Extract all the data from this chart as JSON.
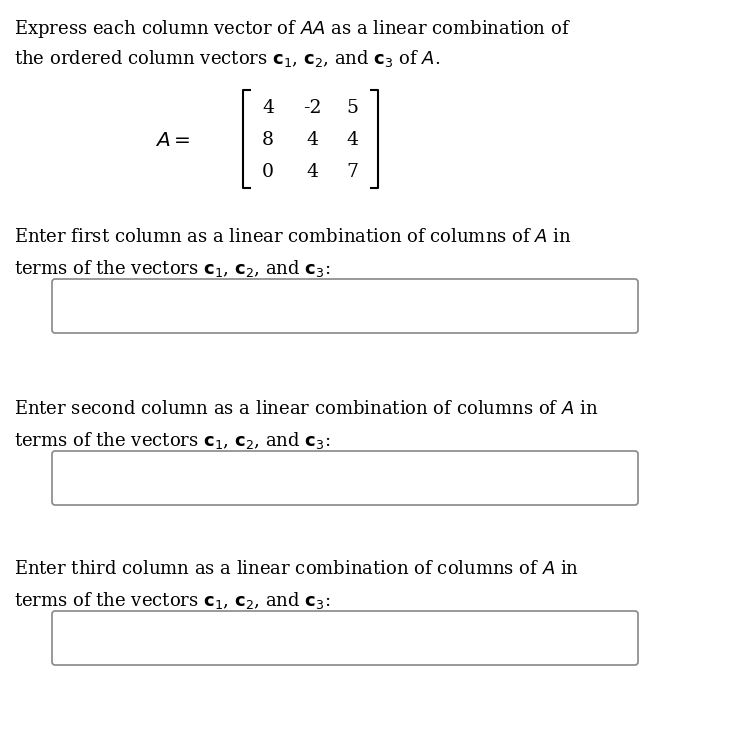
{
  "background_color": "#ffffff",
  "title_line1": "Express each column vector of $AA$ as a linear combination of",
  "title_line2": "the ordered column vectors $\\mathbf{c}_1$, $\\mathbf{c}_2$, and $\\mathbf{c}_3$ of $A$.",
  "matrix_label": "$A = $",
  "matrix_entries": [
    [
      "4",
      "-2",
      "5"
    ],
    [
      "8",
      "4",
      "4"
    ],
    [
      "0",
      "4",
      "7"
    ]
  ],
  "prompt1_line1": "Enter first column as a linear combination of columns of $A$ in",
  "prompt1_line2": "terms of the vectors $\\mathbf{c}_1$, $\\mathbf{c}_2$, and $\\mathbf{c}_3$:",
  "prompt2_line1": "Enter second column as a linear combination of columns of $A$ in",
  "prompt2_line2": "terms of the vectors $\\mathbf{c}_1$, $\\mathbf{c}_2$, and $\\mathbf{c}_3$:",
  "prompt3_line1": "Enter third column as a linear combination of columns of $A$ in",
  "prompt3_line2": "terms of the vectors $\\mathbf{c}_1$, $\\mathbf{c}_2$, and $\\mathbf{c}_3$:",
  "font_size_text": 13.0,
  "font_size_matrix": 13.5,
  "text_color": "#000000",
  "box_edge_color": "#888888",
  "box_face_color": "#ffffff"
}
